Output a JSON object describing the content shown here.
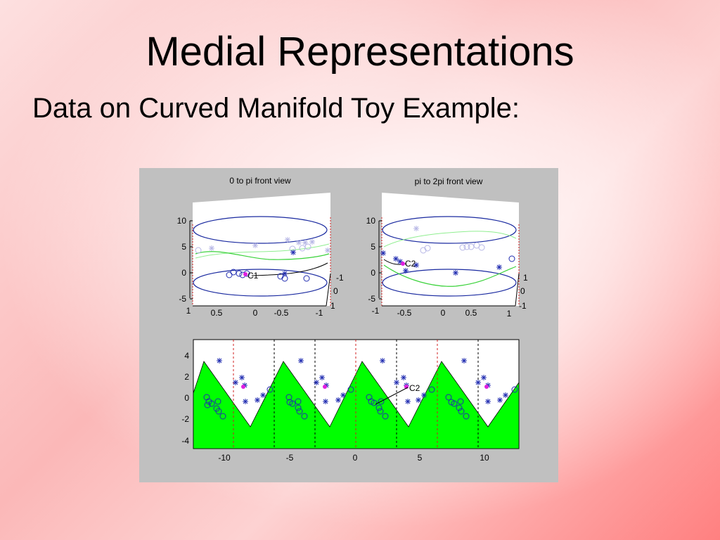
{
  "slide": {
    "title": "Medial Representations",
    "subtitle": "Data on Curved Manifold Toy Example:"
  },
  "colors": {
    "background": "#ffffff",
    "figure_bg": "#c0c0c0",
    "ellipse": "#1a2aa0",
    "curve_light": "#90ee90",
    "curve": "#3ad23a",
    "marker_blue": "#1f2bb0",
    "marker_faint": "#b6b6e6",
    "marker_magenta": "#e020e0",
    "fill_green": "#00ff00",
    "dashed_red": "#d02020"
  },
  "chart_data": [
    {
      "type": "scatter",
      "title": "0 to pi front view",
      "z_ticks": [
        "10",
        "5",
        "0",
        "-5"
      ],
      "x_ticks": [
        "1",
        "0.5",
        "0",
        "-0.5",
        "-1"
      ],
      "y_ticks": [
        "-1",
        "0",
        "1"
      ],
      "annotations": [
        "C1"
      ]
    },
    {
      "type": "scatter",
      "title": "pi to 2pi front view",
      "z_ticks": [
        "10",
        "5",
        "0",
        "-5"
      ],
      "x_ticks": [
        "-1",
        "-0.5",
        "0",
        "0.5",
        "1"
      ],
      "y_ticks": [
        "1",
        "0",
        "-1"
      ],
      "annotations": [
        "C2"
      ]
    },
    {
      "type": "area",
      "x_ticks": [
        "-10",
        "-5",
        "0",
        "5",
        "10"
      ],
      "y_ticks": [
        "4",
        "2",
        "0",
        "-2",
        "-4"
      ],
      "xlim": [
        -12.6,
        12.6
      ],
      "ylim": [
        -4.8,
        5.2
      ],
      "annotations": [
        "C2"
      ]
    }
  ]
}
